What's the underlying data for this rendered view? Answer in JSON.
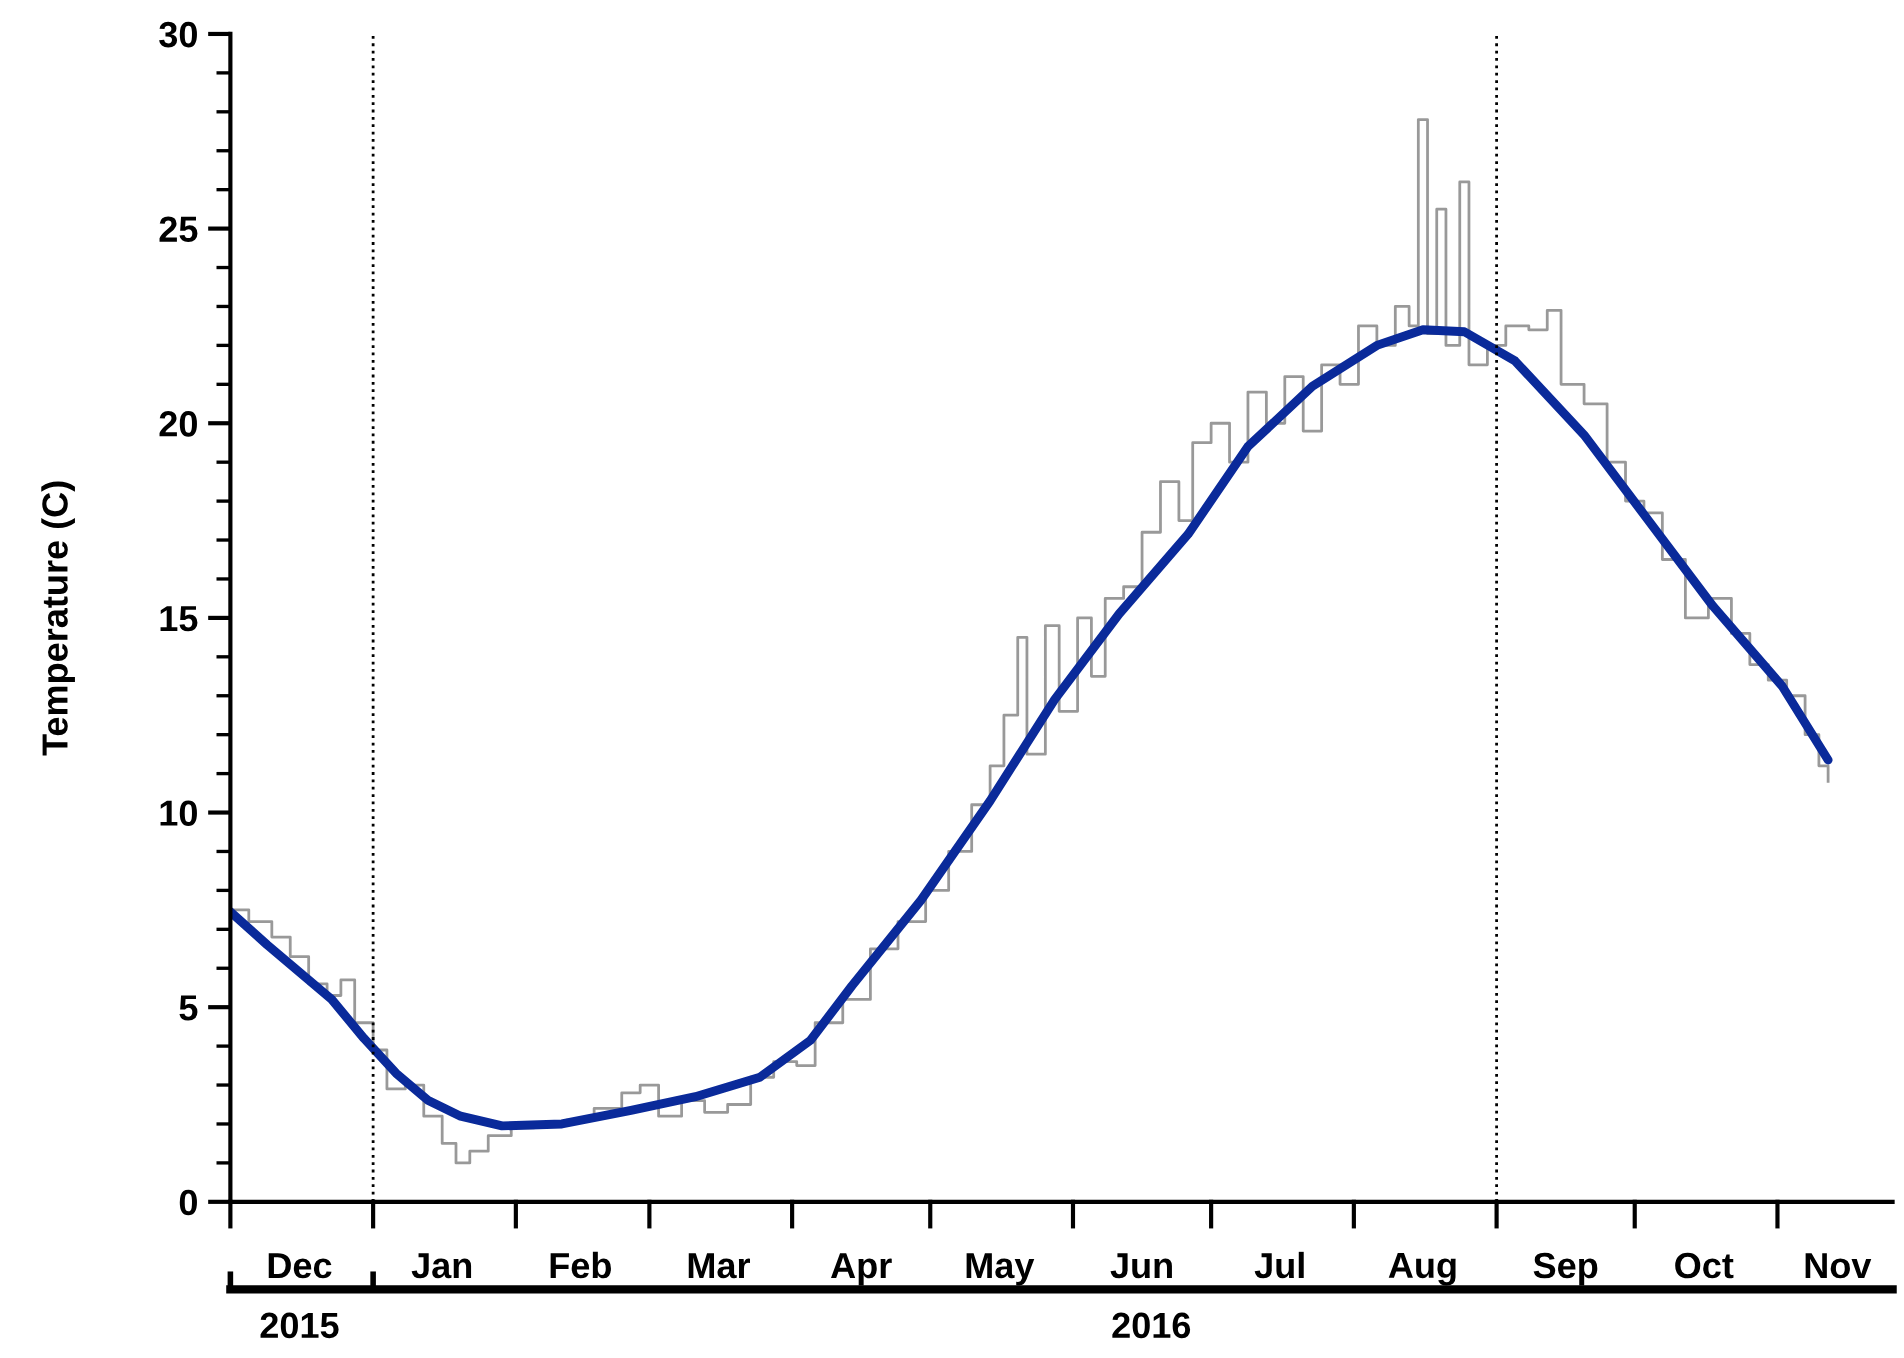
{
  "chart_data": {
    "type": "line",
    "ylabel": "Temperature (C)",
    "xlim": [
      "2015-12-01",
      "2016-11-26"
    ],
    "ylim": [
      0,
      30
    ],
    "yticks": [
      0,
      5,
      10,
      15,
      20,
      25,
      30
    ],
    "xticks": [
      {
        "value": "2015-12-01",
        "label": null
      },
      {
        "value": "2015-12-16",
        "label": "Dec"
      },
      {
        "value": "2016-01-01",
        "label": null
      },
      {
        "value": "2016-01-16",
        "label": "Jan"
      },
      {
        "value": "2016-02-01",
        "label": null
      },
      {
        "value": "2016-02-15",
        "label": "Feb"
      },
      {
        "value": "2016-03-01",
        "label": null
      },
      {
        "value": "2016-03-16",
        "label": "Mar"
      },
      {
        "value": "2016-04-01",
        "label": null
      },
      {
        "value": "2016-04-16",
        "label": "Apr"
      },
      {
        "value": "2016-05-01",
        "label": null
      },
      {
        "value": "2016-05-16",
        "label": "May"
      },
      {
        "value": "2016-06-01",
        "label": null
      },
      {
        "value": "2016-06-16",
        "label": "Jun"
      },
      {
        "value": "2016-07-01",
        "label": null
      },
      {
        "value": "2016-07-16",
        "label": "Jul"
      },
      {
        "value": "2016-08-01",
        "label": null
      },
      {
        "value": "2016-08-16",
        "label": "Aug"
      },
      {
        "value": "2016-09-01",
        "label": null
      },
      {
        "value": "2016-09-16",
        "label": "Sep"
      },
      {
        "value": "2016-10-01",
        "label": null
      },
      {
        "value": "2016-10-16",
        "label": "Oct"
      },
      {
        "value": "2016-11-01",
        "label": null
      },
      {
        "value": "2016-11-14",
        "label": "Nov"
      }
    ],
    "x2lim": [
      "2015-12-01",
      "2016-11-26"
    ],
    "x2ticks": [
      {
        "value": "2015-12-01",
        "label": null
      },
      {
        "value": "2015-12-16",
        "label": "2015"
      },
      {
        "value": "2016-01-01",
        "label": null
      },
      {
        "value": "2016-06-18",
        "label": "2016"
      }
    ],
    "grid": false,
    "legend": false,
    "ref_lines": [
      {
        "axis": "x",
        "value": "2016-01-01",
        "color": "#000000",
        "line_style": "dotted"
      },
      {
        "axis": "x",
        "value": "2016-09-01",
        "color": "#000000",
        "line_style": "dotted"
      }
    ],
    "series": [
      {
        "type": "step",
        "color": "#999999",
        "x": [
          "2015-12-01",
          "2015-12-05",
          "2015-12-10",
          "2015-12-14",
          "2015-12-18",
          "2015-12-22",
          "2015-12-25",
          "2015-12-28",
          "2016-01-01",
          "2016-01-04",
          "2016-01-08",
          "2016-01-12",
          "2016-01-16",
          "2016-01-19",
          "2016-01-22",
          "2016-01-26",
          "2016-01-31",
          "2016-02-05",
          "2016-02-12",
          "2016-02-18",
          "2016-02-24",
          "2016-02-28",
          "2016-03-03",
          "2016-03-08",
          "2016-03-13",
          "2016-03-18",
          "2016-03-23",
          "2016-03-28",
          "2016-04-02",
          "2016-04-06",
          "2016-04-12",
          "2016-04-18",
          "2016-04-24",
          "2016-04-30",
          "2016-05-05",
          "2016-05-10",
          "2016-05-14",
          "2016-05-17",
          "2016-05-20",
          "2016-05-22",
          "2016-05-26",
          "2016-05-29",
          "2016-06-02",
          "2016-06-05",
          "2016-06-08",
          "2016-06-12",
          "2016-06-16",
          "2016-06-20",
          "2016-06-24",
          "2016-06-27",
          "2016-07-01",
          "2016-07-05",
          "2016-07-09",
          "2016-07-13",
          "2016-07-17",
          "2016-07-21",
          "2016-07-25",
          "2016-07-29",
          "2016-08-02",
          "2016-08-06",
          "2016-08-10",
          "2016-08-13",
          "2016-08-15",
          "2016-08-17",
          "2016-08-19",
          "2016-08-21",
          "2016-08-24",
          "2016-08-26",
          "2016-08-30",
          "2016-09-03",
          "2016-09-08",
          "2016-09-12",
          "2016-09-15",
          "2016-09-20",
          "2016-09-25",
          "2016-09-29",
          "2016-10-03",
          "2016-10-07",
          "2016-10-12",
          "2016-10-17",
          "2016-10-22",
          "2016-10-26",
          "2016-10-30",
          "2016-11-03",
          "2016-11-07",
          "2016-11-10",
          "2016-11-12"
        ],
        "values": [
          7.5,
          7.2,
          6.8,
          6.3,
          5.6,
          5.3,
          5.7,
          4.6,
          3.9,
          2.9,
          3.0,
          2.2,
          1.5,
          1.0,
          1.3,
          1.7,
          1.9,
          2.0,
          2.1,
          2.4,
          2.8,
          3.0,
          2.2,
          2.6,
          2.3,
          2.5,
          3.2,
          3.6,
          3.5,
          4.6,
          5.2,
          6.5,
          7.2,
          8.0,
          9.0,
          10.2,
          11.2,
          12.5,
          14.5,
          11.5,
          14.8,
          12.6,
          15.0,
          13.5,
          15.5,
          15.8,
          17.2,
          18.5,
          17.5,
          19.5,
          20.0,
          19.0,
          20.8,
          20.0,
          21.2,
          19.8,
          21.5,
          21.0,
          22.5,
          22.0,
          23.0,
          22.5,
          27.8,
          22.3,
          25.5,
          22.0,
          26.2,
          21.5,
          22.0,
          22.5,
          22.4,
          22.9,
          21.0,
          20.5,
          19.0,
          18.0,
          17.7,
          16.5,
          15.0,
          15.5,
          14.6,
          13.8,
          13.4,
          13.0,
          12.0,
          11.2,
          10.8
        ]
      },
      {
        "type": "line",
        "color": "#0a2a9a",
        "x": [
          "2015-12-01",
          "2015-12-09",
          "2015-12-23",
          "2015-12-30",
          "2016-01-06",
          "2016-01-13",
          "2016-01-20",
          "2016-01-29",
          "2016-02-11",
          "2016-02-26",
          "2016-03-11",
          "2016-03-25",
          "2016-04-05",
          "2016-04-14",
          "2016-04-29",
          "2016-05-14",
          "2016-05-28",
          "2016-06-11",
          "2016-06-26",
          "2016-07-09",
          "2016-07-23",
          "2016-08-06",
          "2016-08-16",
          "2016-08-25",
          "2016-09-05",
          "2016-09-20",
          "2016-10-04",
          "2016-10-18",
          "2016-11-02",
          "2016-11-12"
        ],
        "values": [
          7.45,
          6.6,
          5.2,
          4.2,
          3.3,
          2.6,
          2.2,
          1.95,
          2.0,
          2.35,
          2.7,
          3.2,
          4.15,
          5.55,
          7.75,
          10.3,
          12.9,
          15.1,
          17.15,
          19.4,
          20.95,
          22.0,
          22.4,
          22.35,
          21.6,
          19.7,
          17.5,
          15.3,
          13.25,
          11.35
        ]
      }
    ]
  }
}
